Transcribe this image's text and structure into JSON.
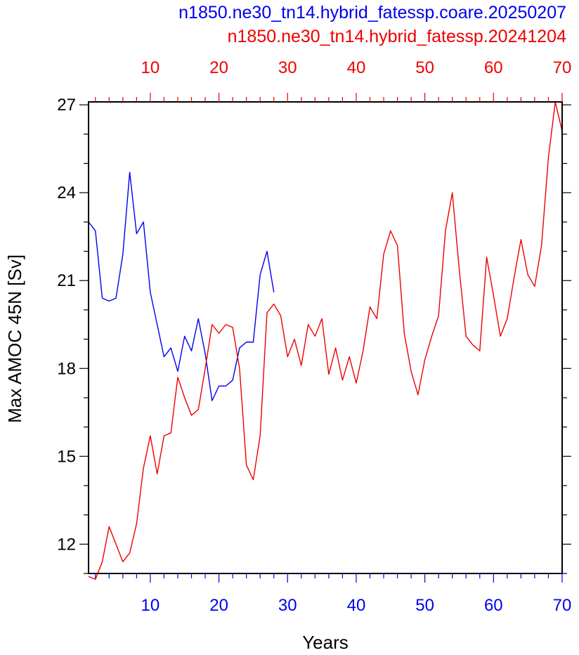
{
  "chart_data": {
    "type": "line",
    "title_lines": [
      {
        "text": "n1850.ne30_tn14.hybrid_fatessp.coare.20250207",
        "color": "#0000ee"
      },
      {
        "text": "n1850.ne30_tn14.hybrid_fatessp.20241204",
        "color": "#ee0000"
      }
    ],
    "xlabel": "Years",
    "ylabel": "Max AMOC 45N [Sv]",
    "xlim": [
      1,
      70
    ],
    "ylim": [
      11,
      27.1
    ],
    "x_ticks": [
      10,
      20,
      30,
      40,
      50,
      60,
      70
    ],
    "x_minor_step": 2,
    "y_ticks": [
      12,
      15,
      18,
      21,
      24,
      27
    ],
    "y_minor_step": 1,
    "x_tick_labels": [
      "10",
      "20",
      "30",
      "40",
      "50",
      "60",
      "70"
    ],
    "y_tick_labels": [
      "12",
      "15",
      "18",
      "21",
      "24",
      "27"
    ],
    "bottom_axis_color": "#0000ee",
    "top_axis_color": "#ee0000",
    "grid": false,
    "series": [
      {
        "color": "#0000ee",
        "x": [
          1,
          2,
          3,
          4,
          5,
          6,
          7,
          8,
          9,
          10,
          11,
          12,
          13,
          14,
          15,
          16,
          17,
          18,
          19,
          20,
          21,
          22,
          23,
          24,
          25,
          26,
          27,
          28
        ],
        "values": [
          23.0,
          22.7,
          20.4,
          20.3,
          20.4,
          21.9,
          24.7,
          22.6,
          23.0,
          20.6,
          19.5,
          18.4,
          18.7,
          17.9,
          19.1,
          18.6,
          19.7,
          18.5,
          16.9,
          17.4,
          17.4,
          17.6,
          18.7,
          18.9,
          18.9,
          21.2,
          22.0,
          20.6
        ]
      },
      {
        "color": "#ee0000",
        "x": [
          1,
          2,
          3,
          4,
          5,
          6,
          7,
          8,
          9,
          10,
          11,
          12,
          13,
          14,
          15,
          16,
          17,
          18,
          19,
          20,
          21,
          22,
          23,
          24,
          25,
          26,
          27,
          28,
          29,
          30,
          31,
          32,
          33,
          34,
          35,
          36,
          37,
          38,
          39,
          40,
          41,
          42,
          43,
          44,
          45,
          46,
          47,
          48,
          49,
          50,
          51,
          52,
          53,
          54,
          55,
          56,
          57,
          58,
          59,
          60,
          61,
          62,
          63,
          64,
          65,
          66,
          67,
          68,
          69,
          70
        ],
        "values": [
          10.9,
          10.8,
          11.4,
          12.6,
          12.0,
          11.4,
          11.7,
          12.7,
          14.6,
          15.7,
          14.4,
          15.7,
          15.8,
          17.7,
          17.0,
          16.4,
          16.6,
          18.0,
          19.5,
          19.2,
          19.5,
          19.4,
          18.0,
          14.7,
          14.2,
          15.7,
          19.9,
          20.2,
          19.8,
          18.4,
          19.0,
          18.1,
          19.5,
          19.1,
          19.7,
          17.8,
          18.7,
          17.6,
          18.4,
          17.5,
          18.6,
          20.1,
          19.7,
          21.9,
          22.7,
          22.2,
          19.2,
          17.9,
          17.1,
          18.3,
          19.1,
          19.8,
          22.7,
          24.0,
          21.4,
          19.1,
          18.8,
          18.6,
          21.8,
          20.5,
          19.1,
          19.7,
          21.1,
          22.4,
          21.2,
          20.8,
          22.2,
          25.2,
          27.1,
          26.1
        ]
      }
    ]
  }
}
